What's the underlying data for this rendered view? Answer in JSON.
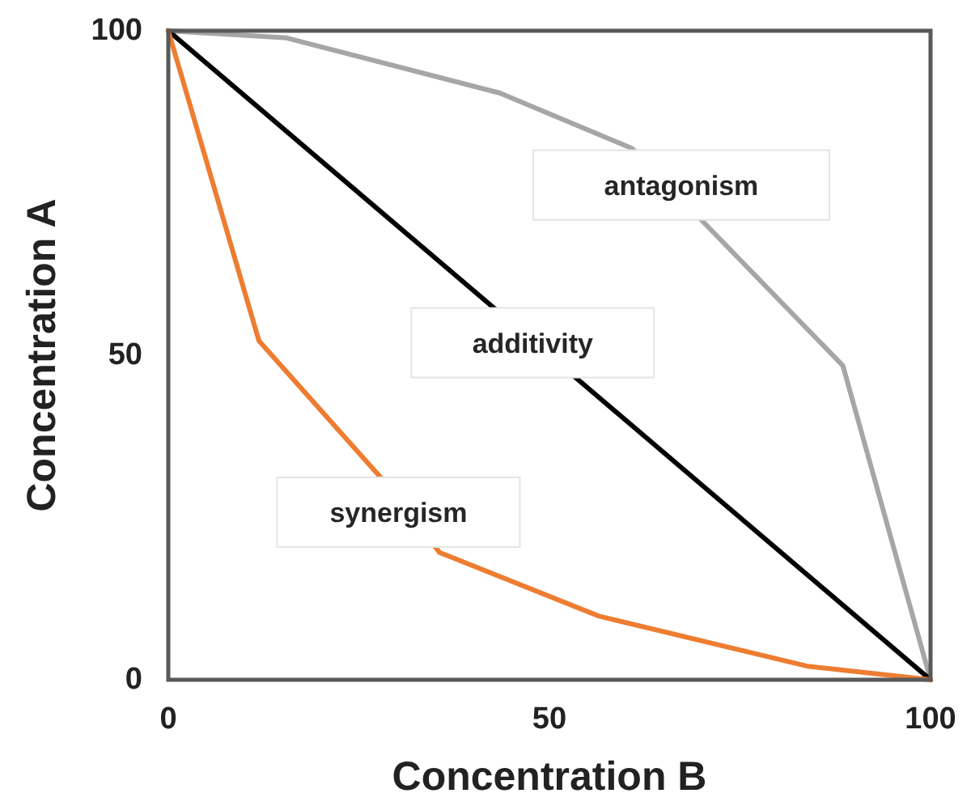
{
  "chart_data": {
    "type": "line",
    "xlabel": "Concentration B",
    "ylabel": "Concentration A",
    "xlim": [
      0,
      100
    ],
    "ylim": [
      0,
      100
    ],
    "xticks": [
      0,
      50,
      100
    ],
    "yticks": [
      0,
      50,
      100
    ],
    "grid": false,
    "legend": false,
    "marker": "none",
    "series": [
      {
        "name": "antagonism",
        "color": "#a6a6a6",
        "x": [
          0,
          15.5,
          43.5,
          60.8,
          88.5,
          100
        ],
        "values": [
          100,
          98.9,
          90.4,
          81.9,
          48.4,
          0
        ]
      },
      {
        "name": "additivity",
        "color": "#000000",
        "x": [
          0,
          100
        ],
        "values": [
          100,
          0
        ]
      },
      {
        "name": "synergism",
        "color": "#ed7d31",
        "x": [
          0,
          11.9,
          27.7,
          35.6,
          56.5,
          83.8,
          100
        ],
        "values": [
          100,
          52.2,
          31.4,
          19.6,
          9.8,
          2.1,
          0
        ]
      }
    ]
  }
}
